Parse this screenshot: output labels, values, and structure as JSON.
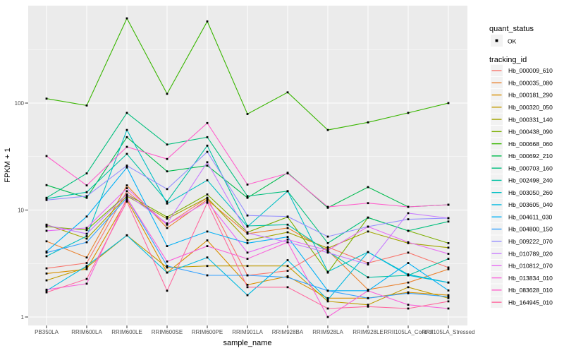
{
  "figure": {
    "background": "#FFFFFF",
    "panel_background": "#EBEBEB",
    "gridline_color": "#FFFFFF",
    "tick_color": "#333333",
    "tick_label_color": "#4D4D4D",
    "point_color": "#000000",
    "legend_key_background": "#F2F2F2"
  },
  "axes": {
    "x_title": "sample_name",
    "y_title": "FPKM + 1",
    "y_tick_labels": [
      "1",
      "10",
      "100"
    ],
    "y_tick_values": [
      1,
      10,
      100
    ],
    "y_minor_values": [
      3.162,
      31.62,
      316.2
    ]
  },
  "legend": {
    "quant_status_title": "quant_status",
    "ok_label": "OK",
    "ok_marker": "black-square-point",
    "tracking_title": "tracking_id"
  },
  "chart_data": {
    "type": "line",
    "x_type": "categorical",
    "y_scale": "log10",
    "xlabel": "sample_name",
    "ylabel": "FPKM + 1",
    "ylim": [
      0.9,
      700
    ],
    "grid": true,
    "legend_position": "right",
    "marker": "black-point-on-every-vertex",
    "categories": [
      "PB350LA",
      "RRIM600LA",
      "RRIM600LE",
      "RRIM600SE",
      "RRIM600PE",
      "RRIM901LA",
      "RRIM928BA",
      "RRIM928LA",
      "RRIM928LE",
      "RRII105LA_Control",
      "RRII105LA_Stressed"
    ],
    "series": [
      {
        "name": "Hb_000009_610",
        "color": "#F8766D",
        "values": [
          2.85,
          3.2,
          15,
          7.3,
          13,
          2.45,
          2.7,
          4.5,
          3.2,
          4.0,
          2.9
        ]
      },
      {
        "name": "Hb_000035_080",
        "color": "#EA8331",
        "values": [
          5.1,
          3.6,
          17,
          6.8,
          12.5,
          6.0,
          6.8,
          4.2,
          1.8,
          2.1,
          2.8
        ]
      },
      {
        "name": "Hb_000181_290",
        "color": "#D89000",
        "values": [
          2.55,
          2.8,
          12.5,
          2.6,
          5.2,
          2.0,
          2.4,
          1.5,
          1.5,
          1.7,
          1.6
        ]
      },
      {
        "name": "Hb_000320_050",
        "color": "#C09B00",
        "values": [
          2.2,
          2.9,
          5.8,
          2.9,
          3.0,
          3.0,
          3.0,
          1.4,
          1.3,
          1.9,
          1.5
        ]
      },
      {
        "name": "Hb_000331_140",
        "color": "#A3A500",
        "values": [
          7.3,
          5.4,
          13.5,
          8.3,
          13,
          5.2,
          6.2,
          4.4,
          6.3,
          4.9,
          4.45
        ]
      },
      {
        "name": "Hb_000438_090",
        "color": "#7CAE00",
        "values": [
          7.0,
          6.5,
          14,
          8.6,
          14,
          6.2,
          8.6,
          2.6,
          8.5,
          6.4,
          4.9
        ]
      },
      {
        "name": "Hb_000668_060",
        "color": "#39B600",
        "values": [
          110,
          95,
          620,
          122,
          580,
          79,
          126,
          56,
          66,
          81,
          100
        ]
      },
      {
        "name": "Hb_000692_210",
        "color": "#00BB4E",
        "values": [
          17.1,
          13,
          48,
          23,
          26,
          13,
          22.3,
          10.5,
          16.4,
          10.7,
          11.2
        ]
      },
      {
        "name": "Hb_000703_160",
        "color": "#00BF7D",
        "values": [
          13,
          22,
          81,
          41,
          48,
          13.5,
          15,
          4.9,
          8.5,
          6.4,
          7.8
        ]
      },
      {
        "name": "Hb_002498_240",
        "color": "#00C1A3",
        "values": [
          12.8,
          14.7,
          33.5,
          12,
          40,
          7.1,
          7.3,
          4.1,
          2.35,
          2.45,
          3.5
        ]
      },
      {
        "name": "Hb_003050_260",
        "color": "#00BFC4",
        "values": [
          3.7,
          5.7,
          56,
          11.5,
          19,
          7.0,
          15,
          2.65,
          4.05,
          2.5,
          2.1
        ]
      },
      {
        "name": "Hb_003605_040",
        "color": "#00BAE0",
        "values": [
          1.76,
          3.0,
          5.8,
          2.6,
          3.6,
          1.6,
          3.4,
          1.45,
          4.05,
          2.45,
          2.1
        ]
      },
      {
        "name": "Hb_004611_030",
        "color": "#00B0F6",
        "values": [
          4.1,
          8.7,
          25,
          4.6,
          6.3,
          4.9,
          5.6,
          1.76,
          1.76,
          3.2,
          1.77
        ]
      },
      {
        "name": "Hb_004800_150",
        "color": "#35A2FF",
        "values": [
          4.0,
          5.0,
          13,
          3.0,
          2.45,
          2.45,
          2.35,
          1.76,
          1.5,
          1.67,
          1.55
        ]
      },
      {
        "name": "Hb_009222_070",
        "color": "#9590FF",
        "values": [
          12.4,
          13.5,
          26,
          15.7,
          35,
          8.9,
          8.7,
          5.65,
          7.0,
          8.2,
          8.4
        ]
      },
      {
        "name": "Hb_010789_020",
        "color": "#C77CFF",
        "values": [
          7.2,
          6.0,
          14,
          7.5,
          28,
          6.1,
          5.0,
          4.0,
          3.1,
          9.35,
          8.4
        ]
      },
      {
        "name": "Hb_010812_070",
        "color": "#E76BF3",
        "values": [
          6.4,
          6.8,
          16,
          7.3,
          12,
          4.0,
          5.3,
          4.2,
          7.0,
          5.0,
          3.9
        ]
      },
      {
        "name": "Hb_013834_010",
        "color": "#FA62DB",
        "values": [
          1.8,
          2.05,
          13,
          3.3,
          4.6,
          3.5,
          5.0,
          1.0,
          1.76,
          1.3,
          1.2
        ]
      },
      {
        "name": "Hb_083628_010",
        "color": "#FF61CC",
        "values": [
          32,
          17,
          39,
          30,
          65,
          17.3,
          22,
          10.7,
          11.6,
          10.7,
          11.2
        ]
      },
      {
        "name": "Hb_164945_010",
        "color": "#FF689F",
        "values": [
          1.7,
          2.27,
          12,
          1.76,
          11.7,
          1.9,
          1.9,
          1.2,
          1.25,
          1.2,
          1.4
        ]
      }
    ]
  }
}
